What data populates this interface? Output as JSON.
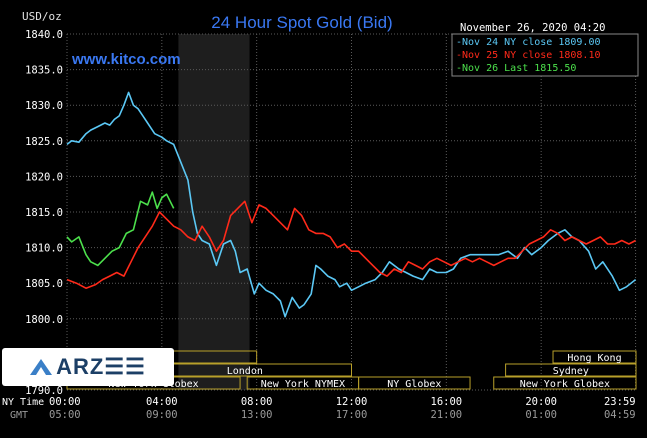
{
  "chart_data": {
    "type": "line",
    "title": "24 Hour Spot Gold (Bid)",
    "ylabel": "USD/oz",
    "watermark": "www.kitco.com",
    "timestamp": "November 26, 2020 04:20",
    "ylim": [
      1790,
      1840
    ],
    "yticks": [
      "1840.0",
      "1835.0",
      "1830.0",
      "1825.0",
      "1820.0",
      "1815.0",
      "1810.0",
      "1805.0",
      "1800.0",
      "1790.0"
    ],
    "x_row_labels": [
      "NY Time",
      "GMT"
    ],
    "x_ticks_ny": [
      "00:00",
      "04:00",
      "08:00",
      "12:00",
      "16:00",
      "20:00",
      "23:59"
    ],
    "x_ticks_gmt": [
      "05:00",
      "09:00",
      "13:00",
      "17:00",
      "21:00",
      "01:00",
      "04:59"
    ],
    "x_hours": [
      0,
      4,
      8,
      12,
      16,
      20,
      23.983
    ],
    "xlim": [
      0,
      24
    ],
    "shaded_region_hours": [
      4.7,
      7.7
    ],
    "grid": true,
    "legend_placement": "top-right",
    "sessions": [
      {
        "label": "",
        "start": 0,
        "end": 8
      },
      {
        "label": "London",
        "start": 3,
        "end": 12
      },
      {
        "label": "New York Globex",
        "start": 0,
        "end": 7.3
      },
      {
        "label": "New York NYMEX",
        "start": 7.6,
        "end": 12.3
      },
      {
        "label": "NY Globex",
        "start": 12.3,
        "end": 17
      },
      {
        "label": "Hong Kong",
        "start": 20.5,
        "end": 24
      },
      {
        "label": "Sydney",
        "start": 18.5,
        "end": 24
      },
      {
        "label": "New York Globex",
        "start": 18,
        "end": 24
      }
    ],
    "series": [
      {
        "name": "Nov 24 NY close 1809.00",
        "color": "#5bc8f5",
        "x": [
          0,
          0.2,
          0.5,
          0.8,
          1.0,
          1.3,
          1.6,
          1.8,
          2.0,
          2.2,
          2.4,
          2.6,
          2.8,
          3.0,
          3.2,
          3.4,
          3.7,
          4.0,
          4.2,
          4.5,
          4.8,
          5.1,
          5.3,
          5.5,
          5.7,
          6.0,
          6.3,
          6.6,
          6.9,
          7.1,
          7.3,
          7.6,
          7.9,
          8.1,
          8.4,
          8.7,
          9.0,
          9.2,
          9.5,
          9.8,
          10.0,
          10.3,
          10.5,
          10.7,
          11.0,
          11.3,
          11.5,
          11.8,
          12.0,
          12.3,
          12.6,
          13.0,
          13.3,
          13.6,
          14.0,
          14.3,
          14.6,
          15.0,
          15.3,
          15.6,
          16.0,
          16.3,
          16.6,
          17.0,
          17.4,
          17.8,
          18.2,
          18.6,
          19.0,
          19.3,
          19.6,
          20.0,
          20.3,
          20.7,
          21.0,
          21.3,
          21.6,
          22.0,
          22.3,
          22.6,
          23.0,
          23.3,
          23.6,
          23.983
        ],
        "y": [
          1824.5,
          1825.0,
          1824.8,
          1826.0,
          1826.5,
          1827.0,
          1827.5,
          1827.2,
          1828.0,
          1828.5,
          1830.0,
          1831.8,
          1830.0,
          1829.5,
          1828.5,
          1827.5,
          1826.0,
          1825.5,
          1825.0,
          1824.5,
          1822.0,
          1819.5,
          1815.0,
          1812.0,
          1811.0,
          1810.5,
          1807.5,
          1810.5,
          1811.0,
          1809.5,
          1806.5,
          1807.0,
          1803.5,
          1805.0,
          1804.0,
          1803.5,
          1802.5,
          1800.3,
          1803.0,
          1801.5,
          1802.0,
          1803.5,
          1807.5,
          1807.0,
          1806.0,
          1805.5,
          1804.5,
          1805.0,
          1804.0,
          1804.5,
          1805.0,
          1805.5,
          1806.5,
          1808.0,
          1807.0,
          1806.5,
          1806.0,
          1805.5,
          1807.0,
          1806.5,
          1806.5,
          1807.0,
          1808.5,
          1809.0,
          1809.0,
          1809.0,
          1809.0,
          1809.5,
          1808.5,
          1810.0,
          1809.0,
          1810.0,
          1811.0,
          1812.0,
          1812.5,
          1811.5,
          1811.0,
          1809.5,
          1807.0,
          1808.0,
          1806.0,
          1804.0,
          1804.5,
          1805.5
        ]
      },
      {
        "name": "Nov 25 NY close 1808.10",
        "color": "#ff2a1a",
        "x": [
          0,
          0.4,
          0.8,
          1.2,
          1.5,
          1.8,
          2.1,
          2.4,
          2.7,
          3.0,
          3.3,
          3.6,
          3.9,
          4.2,
          4.5,
          4.8,
          5.1,
          5.4,
          5.7,
          6.0,
          6.3,
          6.6,
          6.9,
          7.2,
          7.5,
          7.8,
          8.1,
          8.4,
          8.7,
          9.0,
          9.3,
          9.6,
          9.9,
          10.2,
          10.5,
          10.8,
          11.1,
          11.4,
          11.7,
          12.0,
          12.3,
          12.6,
          12.9,
          13.2,
          13.5,
          13.8,
          14.1,
          14.4,
          14.7,
          15.0,
          15.3,
          15.6,
          15.9,
          16.2,
          16.5,
          16.8,
          17.1,
          17.4,
          17.7,
          18.0,
          18.3,
          18.6,
          18.9,
          19.2,
          19.5,
          19.8,
          20.1,
          20.4,
          20.7,
          21.0,
          21.3,
          21.6,
          21.9,
          22.2,
          22.5,
          22.8,
          23.1,
          23.4,
          23.7,
          23.983
        ],
        "y": [
          1805.5,
          1805.0,
          1804.3,
          1804.8,
          1805.5,
          1806.0,
          1806.5,
          1806.0,
          1808.0,
          1810.0,
          1811.5,
          1813.0,
          1815.0,
          1814.0,
          1813.0,
          1812.5,
          1811.5,
          1811.0,
          1813.0,
          1811.5,
          1809.5,
          1811.0,
          1814.5,
          1815.5,
          1816.5,
          1813.5,
          1816.0,
          1815.5,
          1814.5,
          1813.5,
          1812.5,
          1815.5,
          1814.5,
          1812.5,
          1812.0,
          1812.0,
          1811.5,
          1810.0,
          1810.5,
          1809.5,
          1809.5,
          1808.5,
          1807.5,
          1806.5,
          1806.0,
          1807.0,
          1806.5,
          1808.0,
          1807.5,
          1807.0,
          1808.0,
          1808.5,
          1808.0,
          1807.5,
          1808.0,
          1808.5,
          1808.0,
          1808.5,
          1808.0,
          1807.5,
          1808.0,
          1808.5,
          1808.5,
          1809.5,
          1810.5,
          1811.0,
          1811.5,
          1812.5,
          1812.0,
          1811.0,
          1811.5,
          1811.0,
          1810.5,
          1811.0,
          1811.5,
          1810.5,
          1810.5,
          1811.0,
          1810.5,
          1811.0
        ]
      },
      {
        "name": "Nov 26 Last 1815.50",
        "color": "#4ce04c",
        "x": [
          0,
          0.2,
          0.5,
          0.8,
          1.0,
          1.3,
          1.6,
          1.9,
          2.2,
          2.5,
          2.8,
          3.1,
          3.4,
          3.6,
          3.8,
          4.0,
          4.2,
          4.5
        ],
        "y": [
          1811.5,
          1810.8,
          1811.5,
          1809.0,
          1808.0,
          1807.5,
          1808.5,
          1809.5,
          1810.0,
          1812.0,
          1812.5,
          1816.5,
          1816.0,
          1817.8,
          1815.5,
          1817.0,
          1817.5,
          1815.5
        ]
      }
    ]
  },
  "logo": {
    "text": "ARZ☰☰"
  }
}
